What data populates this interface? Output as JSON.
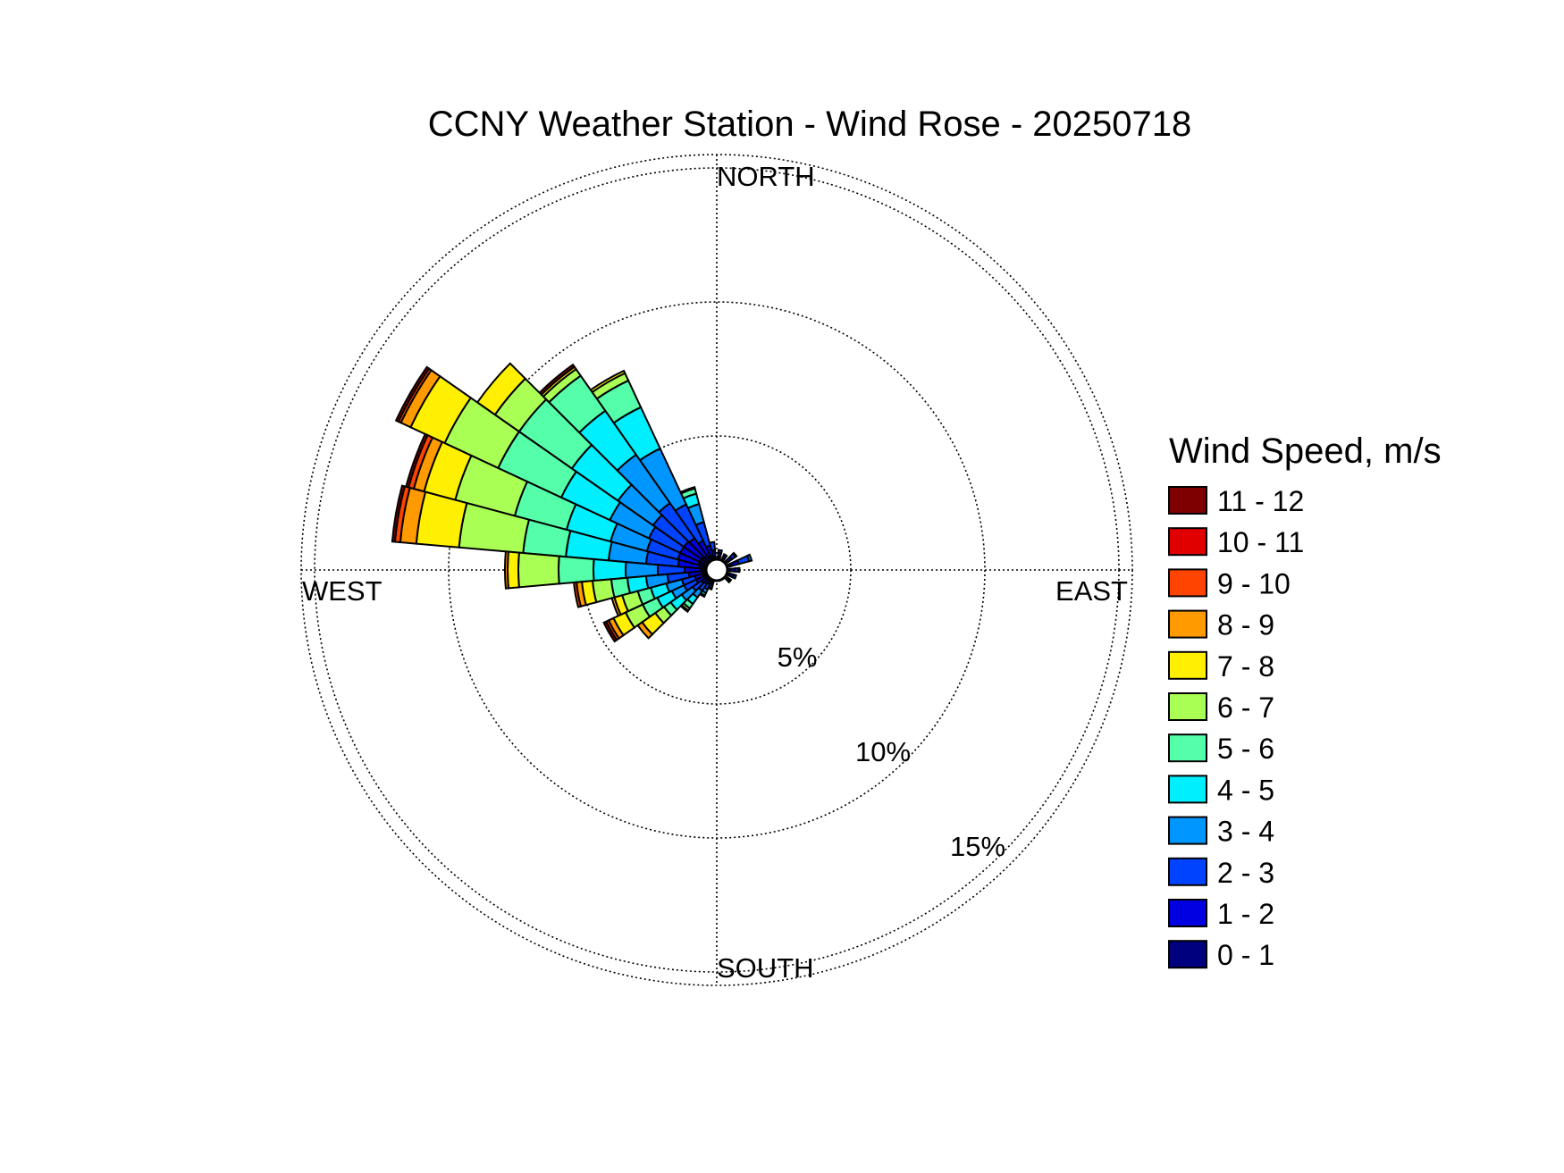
{
  "chart_data": {
    "type": "wind-rose",
    "title": "CCNY Weather Station - Wind Rose - 20250718",
    "directions": {
      "north": "NORTH",
      "east": "EAST",
      "south": "SOUTH",
      "west": "WEST"
    },
    "radial_ticks": [
      {
        "value": 5,
        "label": "5%"
      },
      {
        "value": 10,
        "label": "10%"
      },
      {
        "value": 15,
        "label": "15%"
      }
    ],
    "rmax": 15.5,
    "grid": true,
    "legend": {
      "title": "Wind Speed, m/s",
      "placement": "right",
      "bins": [
        {
          "label": "11 - 12",
          "color": "#7f0000"
        },
        {
          "label": "10 - 11",
          "color": "#e10000"
        },
        {
          "label": "9 - 10",
          "color": "#ff4300"
        },
        {
          "label": "8 - 9",
          "color": "#ff9a00"
        },
        {
          "label": "7 - 8",
          "color": "#ffef00"
        },
        {
          "label": "6 - 7",
          "color": "#aaff55"
        },
        {
          "label": "5 - 6",
          "color": "#55ffaa"
        },
        {
          "label": "4 - 5",
          "color": "#00efff"
        },
        {
          "label": "3 - 4",
          "color": "#0096ff"
        },
        {
          "label": "2 - 3",
          "color": "#0043ff"
        },
        {
          "label": "1 - 2",
          "color": "#0000e1"
        },
        {
          "label": "0 - 1",
          "color": "#00007f"
        }
      ]
    },
    "sector_width_deg": 10,
    "calm_radius": 0.45,
    "series_order": [
      "0 - 1",
      "1 - 2",
      "2 - 3",
      "3 - 4",
      "4 - 5",
      "5 - 6",
      "6 - 7",
      "7 - 8",
      "8 - 9",
      "9 - 10",
      "10 - 11",
      "11 - 12"
    ],
    "sectors": [
      {
        "direction_deg": 350,
        "values": [
          0.05,
          0.25,
          0.3,
          0.0,
          0.0,
          0.0,
          0.0,
          0.0,
          0.0,
          0.0,
          0.0,
          0.0
        ]
      },
      {
        "direction_deg": 340,
        "values": [
          0.1,
          0.4,
          0.9,
          0.7,
          0.4,
          0.2,
          0.05,
          0.0,
          0.0,
          0.0,
          0.0,
          0.0
        ]
      },
      {
        "direction_deg": 330,
        "values": [
          0.15,
          0.6,
          1.5,
          2.3,
          1.7,
          1.1,
          0.3,
          0.1,
          0.0,
          0.0,
          0.0,
          0.0
        ]
      },
      {
        "direction_deg": 320,
        "values": [
          0.2,
          0.8,
          1.6,
          2.2,
          2.0,
          1.6,
          0.3,
          0.1,
          0.0,
          0.0,
          0.0,
          0.1
        ]
      },
      {
        "direction_deg": 310,
        "values": [
          0.25,
          0.8,
          1.4,
          1.6,
          2.1,
          2.4,
          1.1,
          0.8,
          0.0,
          0.0,
          0.0,
          0.0
        ]
      },
      {
        "direction_deg": 300,
        "values": [
          0.25,
          0.8,
          1.3,
          1.6,
          2.0,
          2.6,
          2.2,
          1.4,
          0.4,
          0.1,
          0.0,
          0.1
        ]
      },
      {
        "direction_deg": 290,
        "values": [
          0.25,
          0.8,
          1.2,
          1.4,
          1.7,
          2.0,
          2.3,
          1.2,
          0.4,
          0.2,
          0.0,
          0.1
        ]
      },
      {
        "direction_deg": 280,
        "values": [
          0.2,
          0.8,
          1.2,
          1.4,
          1.6,
          1.6,
          2.4,
          1.6,
          0.6,
          0.2,
          0.0,
          0.1
        ]
      },
      {
        "direction_deg": 270,
        "values": [
          0.15,
          0.6,
          1.0,
          1.2,
          1.2,
          1.3,
          1.5,
          0.4,
          0.1,
          0.0,
          0.0,
          0.0
        ]
      },
      {
        "direction_deg": 260,
        "values": [
          0.1,
          0.5,
          0.8,
          0.8,
          0.7,
          0.6,
          0.7,
          0.4,
          0.2,
          0.1,
          0.0,
          0.0
        ]
      },
      {
        "direction_deg": 250,
        "values": [
          0.1,
          0.3,
          0.5,
          0.6,
          0.6,
          0.5,
          0.6,
          0.3,
          0.1,
          0.0,
          0.0,
          0.0
        ]
      },
      {
        "direction_deg": 240,
        "values": [
          0.1,
          0.3,
          0.5,
          0.5,
          0.6,
          0.6,
          0.7,
          0.5,
          0.2,
          0.1,
          0.0,
          0.1
        ]
      },
      {
        "direction_deg": 230,
        "values": [
          0.05,
          0.2,
          0.4,
          0.5,
          0.5,
          0.3,
          0.4,
          0.6,
          0.2,
          0.0,
          0.0,
          0.0
        ]
      },
      {
        "direction_deg": 220,
        "values": [
          0.05,
          0.15,
          0.3,
          0.3,
          0.3,
          0.2,
          0.1,
          0.05,
          0.0,
          0.0,
          0.0,
          0.0
        ]
      },
      {
        "direction_deg": 210,
        "values": [
          0.05,
          0.1,
          0.2,
          0.15,
          0.1,
          0.05,
          0.0,
          0.0,
          0.0,
          0.0,
          0.0,
          0.0
        ]
      },
      {
        "direction_deg": 200,
        "values": [
          0.05,
          0.1,
          0.1,
          0.05,
          0.0,
          0.0,
          0.0,
          0.0,
          0.0,
          0.0,
          0.0,
          0.0
        ]
      },
      {
        "direction_deg": 130,
        "values": [
          0.05,
          0.1,
          0.05,
          0.0,
          0.0,
          0.0,
          0.0,
          0.0,
          0.0,
          0.0,
          0.0,
          0.0
        ]
      },
      {
        "direction_deg": 110,
        "values": [
          0.05,
          0.15,
          0.1,
          0.0,
          0.0,
          0.0,
          0.0,
          0.0,
          0.0,
          0.0,
          0.0,
          0.0
        ]
      },
      {
        "direction_deg": 90,
        "values": [
          0.05,
          0.2,
          0.1,
          0.05,
          0.0,
          0.0,
          0.0,
          0.0,
          0.0,
          0.0,
          0.0,
          0.0
        ]
      },
      {
        "direction_deg": 70,
        "values": [
          0.1,
          0.3,
          0.4,
          0.1,
          0.0,
          0.0,
          0.0,
          0.0,
          0.0,
          0.0,
          0.0,
          0.0
        ]
      },
      {
        "direction_deg": 50,
        "values": [
          0.05,
          0.2,
          0.15,
          0.05,
          0.0,
          0.0,
          0.0,
          0.0,
          0.0,
          0.0,
          0.0,
          0.0
        ]
      },
      {
        "direction_deg": 30,
        "values": [
          0.05,
          0.1,
          0.05,
          0.0,
          0.0,
          0.0,
          0.0,
          0.0,
          0.0,
          0.0,
          0.0,
          0.0
        ]
      },
      {
        "direction_deg": 10,
        "values": [
          0.05,
          0.15,
          0.1,
          0.0,
          0.0,
          0.0,
          0.0,
          0.0,
          0.0,
          0.0,
          0.0,
          0.0
        ]
      }
    ]
  }
}
